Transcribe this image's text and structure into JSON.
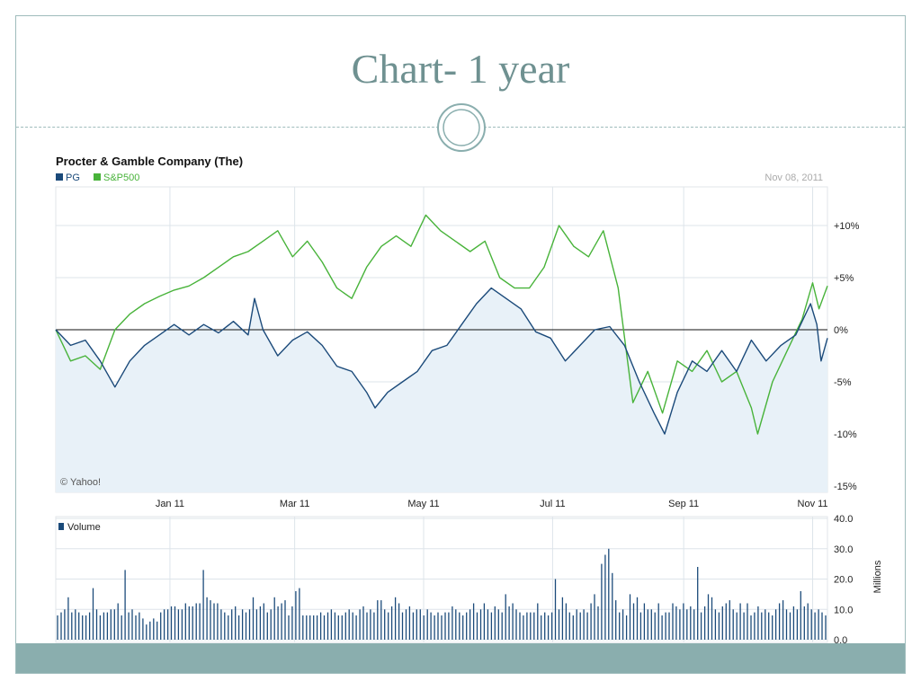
{
  "slide": {
    "title": "Chart- 1 year"
  },
  "colors": {
    "pg": "#1b4a7a",
    "sp": "#48b33a",
    "fill": "#e8f1f8",
    "grid": "#dde4ea",
    "accent": "#8aaeae"
  },
  "chart_data": [
    {
      "type": "line",
      "title": "Procter & Gamble Company (The)",
      "date_label": "Nov 08, 2011",
      "source_label": "© Yahoo!",
      "ylim": [
        -15,
        14
      ],
      "y_ticks": [
        10,
        5,
        0,
        -5,
        -10,
        -15
      ],
      "y_tick_labels": [
        "+10%",
        "+5%",
        "0%",
        "-5%",
        "-10%",
        "-15%"
      ],
      "x_ticks": [
        "2011-01-01",
        "2011-03-01",
        "2011-05-01",
        "2011-07-01",
        "2011-09-01",
        "2011-11-01"
      ],
      "x_tick_labels": [
        "Jan 11",
        "Mar 11",
        "May 11",
        "Jul 11",
        "Sep 11",
        "Nov 11"
      ],
      "x_range": [
        "2010-11-08",
        "2011-11-08"
      ],
      "grid": true,
      "legend_position": "top-left",
      "series": [
        {
          "name": "PG",
          "points": [
            [
              "2010-11-08",
              0
            ],
            [
              "2010-11-15",
              -1.5
            ],
            [
              "2010-11-22",
              -1
            ],
            [
              "2010-11-29",
              -3
            ],
            [
              "2010-12-06",
              -5.5
            ],
            [
              "2010-12-13",
              -3
            ],
            [
              "2010-12-20",
              -1.5
            ],
            [
              "2010-12-27",
              -0.5
            ],
            [
              "2011-01-03",
              0.5
            ],
            [
              "2011-01-10",
              -0.5
            ],
            [
              "2011-01-17",
              0.5
            ],
            [
              "2011-01-24",
              -0.3
            ],
            [
              "2011-01-31",
              0.8
            ],
            [
              "2011-02-07",
              -0.5
            ],
            [
              "2011-02-10",
              3
            ],
            [
              "2011-02-14",
              0
            ],
            [
              "2011-02-21",
              -2.5
            ],
            [
              "2011-02-28",
              -1
            ],
            [
              "2011-03-07",
              -0.2
            ],
            [
              "2011-03-14",
              -1.5
            ],
            [
              "2011-03-21",
              -3.5
            ],
            [
              "2011-03-28",
              -4
            ],
            [
              "2011-04-04",
              -6
            ],
            [
              "2011-04-08",
              -7.5
            ],
            [
              "2011-04-14",
              -6
            ],
            [
              "2011-04-21",
              -5
            ],
            [
              "2011-04-28",
              -4
            ],
            [
              "2011-05-05",
              -2
            ],
            [
              "2011-05-12",
              -1.5
            ],
            [
              "2011-05-19",
              0.5
            ],
            [
              "2011-05-26",
              2.5
            ],
            [
              "2011-06-02",
              4
            ],
            [
              "2011-06-09",
              3
            ],
            [
              "2011-06-16",
              2
            ],
            [
              "2011-06-23",
              -0.2
            ],
            [
              "2011-06-30",
              -0.8
            ],
            [
              "2011-07-07",
              -3
            ],
            [
              "2011-07-14",
              -1.5
            ],
            [
              "2011-07-21",
              0
            ],
            [
              "2011-07-28",
              0.3
            ],
            [
              "2011-08-04",
              -1.5
            ],
            [
              "2011-08-11",
              -5
            ],
            [
              "2011-08-18",
              -8
            ],
            [
              "2011-08-23",
              -10
            ],
            [
              "2011-08-29",
              -6
            ],
            [
              "2011-09-05",
              -3
            ],
            [
              "2011-09-12",
              -4
            ],
            [
              "2011-09-19",
              -2
            ],
            [
              "2011-09-26",
              -4
            ],
            [
              "2011-10-03",
              -1
            ],
            [
              "2011-10-10",
              -3
            ],
            [
              "2011-10-17",
              -1.5
            ],
            [
              "2011-10-24",
              -0.5
            ],
            [
              "2011-10-31",
              2.5
            ],
            [
              "2011-11-03",
              0.5
            ],
            [
              "2011-11-05",
              -3
            ],
            [
              "2011-11-08",
              -0.8
            ]
          ]
        },
        {
          "name": "S&P500",
          "points": [
            [
              "2010-11-08",
              0
            ],
            [
              "2010-11-15",
              -3
            ],
            [
              "2010-11-22",
              -2.5
            ],
            [
              "2010-11-29",
              -3.8
            ],
            [
              "2010-12-06",
              0
            ],
            [
              "2010-12-13",
              1.5
            ],
            [
              "2010-12-20",
              2.5
            ],
            [
              "2010-12-27",
              3.2
            ],
            [
              "2011-01-03",
              3.8
            ],
            [
              "2011-01-10",
              4.2
            ],
            [
              "2011-01-17",
              5
            ],
            [
              "2011-01-24",
              6
            ],
            [
              "2011-01-31",
              7
            ],
            [
              "2011-02-07",
              7.5
            ],
            [
              "2011-02-14",
              8.5
            ],
            [
              "2011-02-21",
              9.5
            ],
            [
              "2011-02-28",
              7
            ],
            [
              "2011-03-07",
              8.5
            ],
            [
              "2011-03-14",
              6.5
            ],
            [
              "2011-03-21",
              4
            ],
            [
              "2011-03-28",
              3
            ],
            [
              "2011-04-04",
              6
            ],
            [
              "2011-04-11",
              8
            ],
            [
              "2011-04-18",
              9
            ],
            [
              "2011-04-25",
              8
            ],
            [
              "2011-05-02",
              11
            ],
            [
              "2011-05-09",
              9.5
            ],
            [
              "2011-05-16",
              8.5
            ],
            [
              "2011-05-23",
              7.5
            ],
            [
              "2011-05-30",
              8.5
            ],
            [
              "2011-06-06",
              5
            ],
            [
              "2011-06-13",
              4
            ],
            [
              "2011-06-20",
              4
            ],
            [
              "2011-06-27",
              6
            ],
            [
              "2011-07-04",
              10
            ],
            [
              "2011-07-11",
              8
            ],
            [
              "2011-07-18",
              7
            ],
            [
              "2011-07-25",
              9.5
            ],
            [
              "2011-08-01",
              4
            ],
            [
              "2011-08-08",
              -7
            ],
            [
              "2011-08-15",
              -4
            ],
            [
              "2011-08-22",
              -8
            ],
            [
              "2011-08-29",
              -3
            ],
            [
              "2011-09-05",
              -4
            ],
            [
              "2011-09-12",
              -2
            ],
            [
              "2011-09-19",
              -5
            ],
            [
              "2011-09-26",
              -4
            ],
            [
              "2011-10-03",
              -7.5
            ],
            [
              "2011-10-06",
              -10
            ],
            [
              "2011-10-13",
              -5
            ],
            [
              "2011-10-20",
              -2
            ],
            [
              "2011-10-27",
              1
            ],
            [
              "2011-11-01",
              4.5
            ],
            [
              "2011-11-04",
              2
            ],
            [
              "2011-11-08",
              4.2
            ]
          ]
        }
      ]
    },
    {
      "type": "bar",
      "legend": "Volume",
      "ylabel": "Millions",
      "ylim": [
        0,
        40
      ],
      "y_ticks": [
        0,
        10,
        20,
        30,
        40
      ],
      "y_tick_labels": [
        "0.0",
        "10.0",
        "20.0",
        "30.0",
        "40.0"
      ],
      "values": [
        8,
        9,
        10,
        14,
        9,
        10,
        9,
        8,
        8,
        9,
        17,
        10,
        8,
        9,
        9,
        10,
        10,
        12,
        8,
        23,
        9,
        10,
        8,
        9,
        7,
        5,
        6,
        7,
        6,
        9,
        10,
        10,
        11,
        11,
        10,
        10,
        12,
        11,
        11,
        12,
        12,
        23,
        14,
        13,
        12,
        12,
        10,
        9,
        8,
        10,
        11,
        8,
        10,
        9,
        10,
        14,
        10,
        11,
        12,
        9,
        10,
        14,
        11,
        12,
        13,
        8,
        11,
        16,
        17,
        8,
        8,
        8,
        8,
        8,
        9,
        8,
        9,
        10,
        9,
        8,
        8,
        9,
        10,
        9,
        8,
        10,
        11,
        9,
        10,
        9,
        13,
        13,
        10,
        9,
        11,
        14,
        12,
        9,
        10,
        11,
        9,
        10,
        10,
        8,
        10,
        9,
        8,
        9,
        8,
        9,
        9,
        11,
        10,
        9,
        8,
        9,
        10,
        12,
        9,
        10,
        12,
        10,
        9,
        11,
        10,
        9,
        15,
        11,
        12,
        10,
        9,
        8,
        9,
        9,
        9,
        12,
        8,
        9,
        8,
        9,
        20,
        10,
        14,
        12,
        9,
        8,
        10,
        9,
        10,
        9,
        12,
        15,
        11,
        25,
        28,
        30,
        22,
        13,
        9,
        10,
        8,
        15,
        12,
        14,
        9,
        12,
        10,
        10,
        9,
        12,
        8,
        9,
        9,
        12,
        11,
        10,
        12,
        10,
        11,
        10,
        24,
        9,
        11,
        15,
        14,
        10,
        9,
        11,
        12,
        13,
        10,
        9,
        12,
        9,
        12,
        8,
        9,
        11,
        9,
        10,
        9,
        8,
        10,
        12,
        13,
        10,
        9,
        11,
        10,
        16,
        11,
        12,
        10,
        9,
        10,
        9,
        8
      ],
      "grid": true
    }
  ]
}
